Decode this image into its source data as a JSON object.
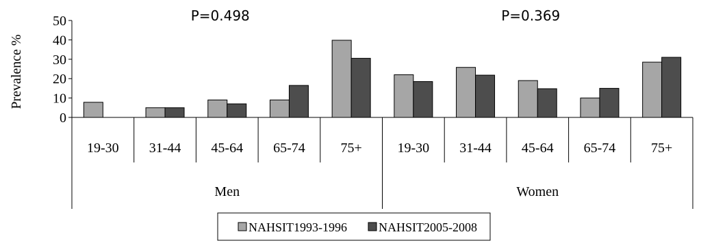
{
  "chart_data": {
    "type": "bar",
    "ylabel": "Prevalence %",
    "ylim": [
      0,
      50
    ],
    "yticks": [
      0,
      10,
      20,
      30,
      40,
      50
    ],
    "grid": false,
    "legend_position": "bottom-center",
    "groups": [
      {
        "name": "Men",
        "annotation": "P=0.498",
        "categories": [
          "19-30",
          "31-44",
          "45-64",
          "65-74",
          "75+"
        ]
      },
      {
        "name": "Women",
        "annotation": "P=0.369",
        "categories": [
          "19-30",
          "31-44",
          "45-64",
          "65-74",
          "75+"
        ]
      }
    ],
    "series": [
      {
        "name": "NAHSIT1993-1996",
        "color": "#a6a6a6",
        "values": [
          7.8,
          5.0,
          9.0,
          9.0,
          39.8,
          22.0,
          25.8,
          19.0,
          10.0,
          28.5
        ]
      },
      {
        "name": "NAHSIT2005-2008",
        "color": "#4d4d4d",
        "values": [
          0,
          5.0,
          7.0,
          16.5,
          30.5,
          18.5,
          21.8,
          14.8,
          15.0,
          31.0
        ]
      }
    ]
  }
}
